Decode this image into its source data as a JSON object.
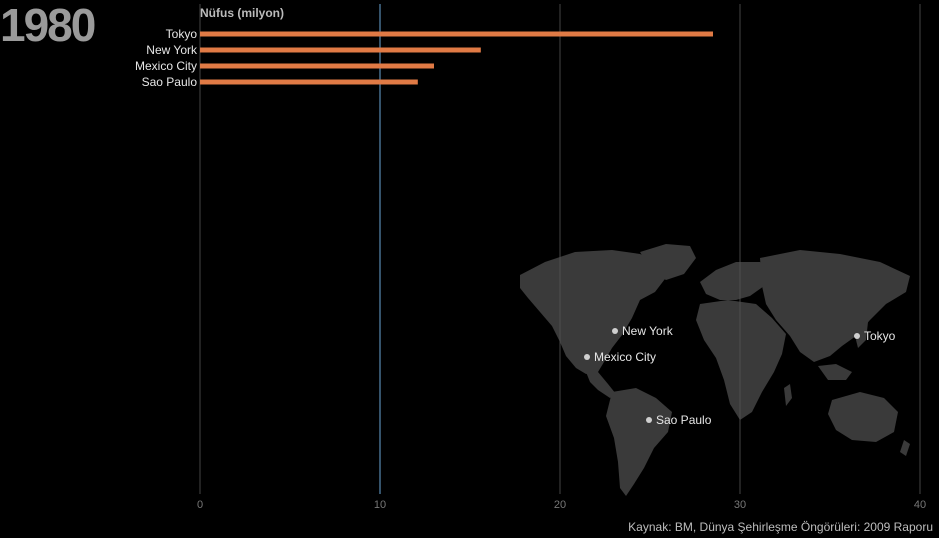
{
  "year": "1980",
  "source": "Kaynak: BM, Dünya Şehirleşme Öngörüleri: 2009 Raporu",
  "colors": {
    "bar": "#e07a45",
    "grid": "#555555",
    "highlight_grid": "#6aa6d6",
    "land": "#3a3a3a",
    "dot": "#cfcfcf"
  },
  "chart_data": {
    "type": "bar",
    "orientation": "horizontal",
    "ylabel": "Nüfus (milyon)",
    "categories": [
      "Tokyo",
      "New York",
      "Mexico City",
      "Sao Paulo"
    ],
    "values": [
      28.5,
      15.6,
      13.0,
      12.1
    ],
    "xlim": [
      0,
      40
    ],
    "xticks": [
      0,
      10,
      20,
      30,
      40
    ],
    "highlight_tick": 10,
    "grid": true
  },
  "map": {
    "cities": [
      {
        "name": "New York",
        "label_side": "right"
      },
      {
        "name": "Mexico City",
        "label_side": "right"
      },
      {
        "name": "Sao Paulo",
        "label_side": "right"
      },
      {
        "name": "Tokyo",
        "label_side": "right"
      }
    ]
  }
}
